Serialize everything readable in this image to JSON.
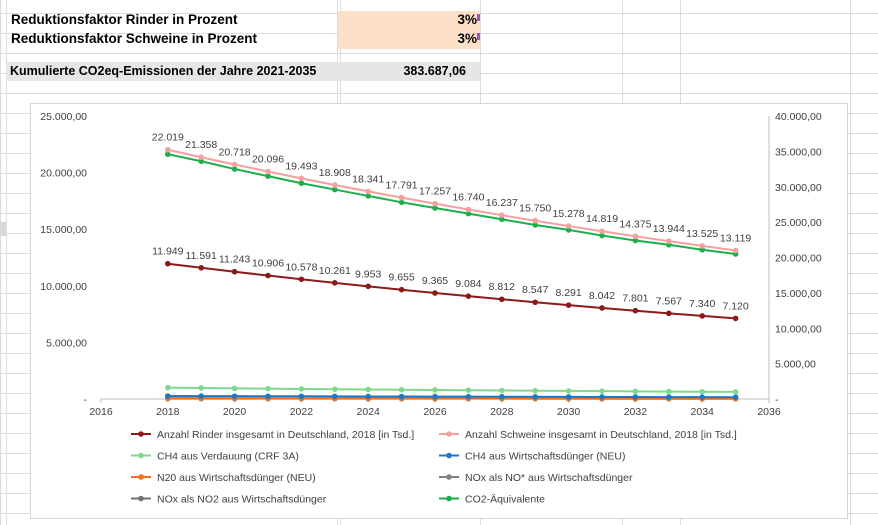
{
  "sheet": {
    "rows": [
      {
        "label": "Reduktionsfaktor Rinder in Prozent",
        "value": "3%"
      },
      {
        "label": "Reduktionsfaktor Schweine in Prozent",
        "value": "3%"
      }
    ],
    "summary": {
      "label": "Kumulierte CO2eq-Emissionen der Jahre 2021-2035",
      "value": "383.687,06"
    }
  },
  "colors": {
    "rinder": "#8B1A1A",
    "schweine": "#F4A0A0",
    "ch4_verdauung": "#7FD88C",
    "ch4_wirtschaft": "#1F77C4",
    "n20": "#F07020",
    "nox_no": "#808080",
    "nox_no2": "#707070",
    "co2": "#1BAF4A"
  },
  "chart_data": {
    "type": "line",
    "x": [
      2018,
      2019,
      2020,
      2021,
      2022,
      2023,
      2024,
      2025,
      2026,
      2027,
      2028,
      2029,
      2030,
      2031,
      2032,
      2033,
      2034,
      2035
    ],
    "xlim": [
      2016,
      2036
    ],
    "x_ticks": [
      "2016",
      "2018",
      "2020",
      "2022",
      "2024",
      "2026",
      "2028",
      "2030",
      "2032",
      "2034",
      "2036"
    ],
    "ylim_left": [
      0,
      25000
    ],
    "y_ticks_left": [
      "25.000,00",
      "20.000,00",
      "15.000,00",
      "10.000,00",
      "5.000,00",
      "-"
    ],
    "ylim_right": [
      0,
      40000
    ],
    "y_ticks_right": [
      "40.000,00",
      "35.000,00",
      "30.000,00",
      "25.000,00",
      "20.000,00",
      "15.000,00",
      "10.000,00",
      "5.000,00",
      "-"
    ],
    "grid": false,
    "legend": "bottom",
    "series": [
      {
        "key": "rinder",
        "name": "Anzahl Rinder insgesamt in Deutschland, 2018 [in Tsd.]",
        "axis": "left",
        "values": [
          11949,
          11591,
          11243,
          10906,
          10578,
          10261,
          9953,
          9655,
          9365,
          9084,
          8812,
          8547,
          8291,
          8042,
          7801,
          7567,
          7340,
          7120
        ],
        "labels": [
          "11.949",
          "11.591",
          "11.243",
          "10.906",
          "10.578",
          "10.261",
          "9.953",
          "9.655",
          "9.365",
          "9.084",
          "8.812",
          "8.547",
          "8.291",
          "8.042",
          "7.801",
          "7.567",
          "7.340",
          "7.120"
        ]
      },
      {
        "key": "schweine",
        "name": "Anzahl Schweine insgesamt in Deutschland, 2018 [in Tsd.]",
        "axis": "left",
        "values": [
          22019,
          21358,
          20718,
          20096,
          19493,
          18908,
          18341,
          17791,
          17257,
          16740,
          16237,
          15750,
          15278,
          14819,
          14375,
          13944,
          13525,
          13119
        ],
        "labels": [
          "22.019",
          "21.358",
          "20.718",
          "20.096",
          "19.493",
          "18.908",
          "18.341",
          "17.791",
          "17.257",
          "16.740",
          "16.237",
          "15.750",
          "15.278",
          "14.819",
          "14.375",
          "13.944",
          "13.525",
          "13.119"
        ]
      },
      {
        "key": "ch4_verdauung",
        "name": "CH4 aus Verdauung (CRF 3A)",
        "axis": "right",
        "values": [
          1600,
          1560,
          1500,
          1460,
          1420,
          1380,
          1350,
          1310,
          1280,
          1240,
          1210,
          1170,
          1140,
          1110,
          1080,
          1050,
          1020,
          1000
        ]
      },
      {
        "key": "ch4_wirtschaft",
        "name": "CH4 aus Wirtschaftsdünger (NEU)",
        "axis": "right",
        "values": [
          420,
          410,
          400,
          390,
          380,
          370,
          360,
          350,
          340,
          330,
          320,
          310,
          300,
          290,
          280,
          270,
          260,
          250
        ]
      },
      {
        "key": "n20",
        "name": "N20 aus Wirtschaftsdünger (NEU)",
        "axis": "right",
        "values": [
          120,
          117,
          114,
          111,
          108,
          105,
          102,
          99,
          96,
          93,
          90,
          87,
          84,
          81,
          78,
          75,
          72,
          70
        ]
      },
      {
        "key": "nox_no",
        "name": "NOx als NO* aus Wirtschaftsdünger",
        "axis": "right",
        "values": [
          60,
          58,
          57,
          55,
          54,
          52,
          51,
          49,
          48,
          46,
          45,
          44,
          42,
          41,
          40,
          39,
          38,
          37
        ]
      },
      {
        "key": "nox_no2",
        "name": "NOx als NO2 aus Wirtschaftsdünger",
        "axis": "right",
        "values": [
          90,
          88,
          85,
          83,
          81,
          78,
          76,
          74,
          72,
          70,
          68,
          66,
          64,
          62,
          60,
          58,
          56,
          55
        ]
      },
      {
        "key": "co2",
        "name": "CO2-Äquivalente",
        "axis": "right",
        "values": [
          34600,
          33600,
          32500,
          31500,
          30500,
          29600,
          28700,
          27800,
          27000,
          26200,
          25400,
          24600,
          23900,
          23100,
          22400,
          21800,
          21100,
          20500
        ]
      }
    ]
  }
}
